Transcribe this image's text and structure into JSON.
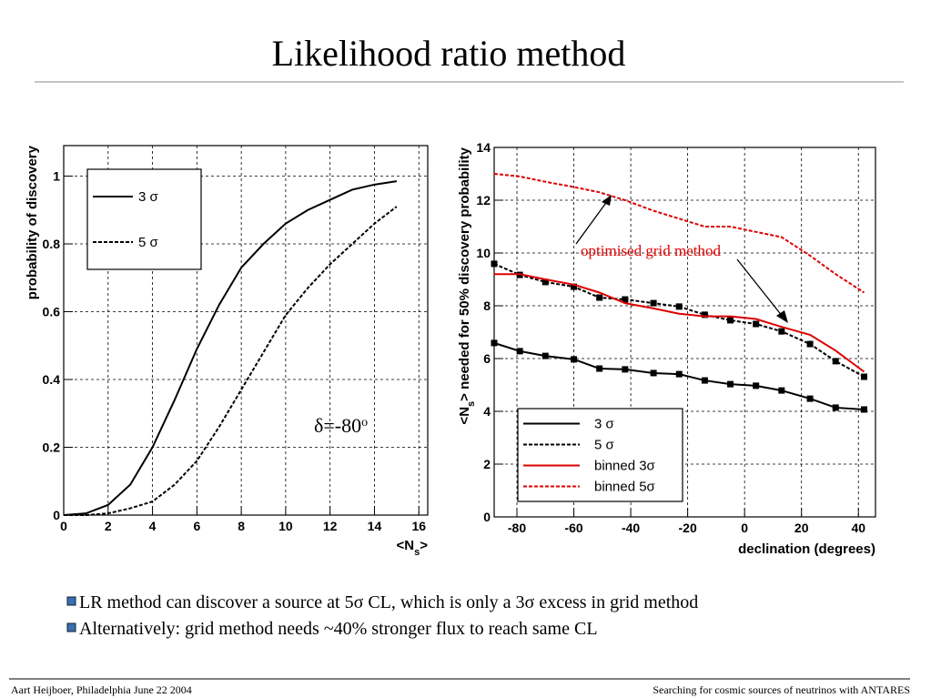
{
  "title": "Likelihood ratio method",
  "chart_data": [
    {
      "type": "line",
      "xlabel_parts": [
        "<N",
        "s",
        ">"
      ],
      "ylabel": "probability of discovery",
      "x": [
        0,
        1,
        2,
        3,
        4,
        5,
        6,
        7,
        8,
        9,
        10,
        11,
        12,
        13,
        14,
        15
      ],
      "series": [
        {
          "name": "3 σ",
          "color": "#000000",
          "style": "solid",
          "values": [
            0,
            0.005,
            0.03,
            0.09,
            0.2,
            0.34,
            0.49,
            0.62,
            0.73,
            0.8,
            0.86,
            0.9,
            0.93,
            0.96,
            0.975,
            0.985
          ]
        },
        {
          "name": "5 σ",
          "color": "#000000",
          "style": "dashed",
          "values": [
            0,
            0,
            0.005,
            0.02,
            0.04,
            0.09,
            0.16,
            0.26,
            0.37,
            0.48,
            0.59,
            0.67,
            0.74,
            0.8,
            0.86,
            0.91
          ]
        }
      ],
      "xlim": [
        0,
        16.4
      ],
      "ylim": [
        0,
        1.09
      ],
      "xticks": [
        0,
        2,
        4,
        6,
        8,
        10,
        12,
        14,
        16
      ],
      "yticks": [
        0,
        0.2,
        0.4,
        0.6,
        0.8,
        1
      ],
      "grid": true,
      "legend": "upper left",
      "annotation_parts": [
        "δ=-80",
        "o"
      ]
    },
    {
      "type": "line",
      "xlabel": "declination (degrees)",
      "ylabel_parts": [
        "<N",
        "s",
        "> needed for 50% discovery probability"
      ],
      "x": [
        -88,
        -79,
        -70,
        -60,
        -51,
        -42,
        -32,
        -23,
        -14,
        -5,
        4,
        13,
        23,
        32,
        42
      ],
      "series": [
        {
          "name": "3 σ",
          "color": "#000000",
          "style": "solid",
          "markers": true,
          "values": [
            6.59,
            6.28,
            6.1,
            5.97,
            5.62,
            5.59,
            5.45,
            5.41,
            5.17,
            5.03,
            4.97,
            4.79,
            4.48,
            4.14,
            4.07
          ]
        },
        {
          "name": "5 σ",
          "color": "#000000",
          "style": "dashed",
          "markers": true,
          "values": [
            9.59,
            9.17,
            8.9,
            8.72,
            8.31,
            8.24,
            8.1,
            7.97,
            7.66,
            7.45,
            7.31,
            7.03,
            6.55,
            5.9,
            5.31
          ]
        },
        {
          "name": "binned 3σ",
          "color": "#dd0000",
          "style": "solid",
          "values": [
            9.2,
            9.2,
            9.0,
            8.8,
            8.5,
            8.1,
            7.9,
            7.7,
            7.6,
            7.6,
            7.5,
            7.2,
            6.9,
            6.3,
            5.5
          ]
        },
        {
          "name": "binned 5σ",
          "color": "#dd0000",
          "style": "dashed",
          "values": [
            13.0,
            12.9,
            12.7,
            12.5,
            12.3,
            12.0,
            11.6,
            11.3,
            11.0,
            11.0,
            10.8,
            10.6,
            9.9,
            9.2,
            8.5
          ]
        }
      ],
      "xlim": [
        -88,
        46
      ],
      "ylim": [
        0,
        14
      ],
      "xticks": [
        -80,
        -60,
        -40,
        -20,
        0,
        20,
        40
      ],
      "yticks": [
        0,
        2,
        4,
        6,
        8,
        10,
        12,
        14
      ],
      "grid": true,
      "legend": "lower left",
      "annotation": "optimised grid method"
    }
  ],
  "bullets": [
    "LR method can discover a source at 5σ CL, which is only a 3σ  excess in grid method",
    "Alternatively: grid method needs ~40% stronger flux to reach same CL"
  ],
  "footer": {
    "left": "Aart Heijboer, Philadelphia June 22 2004",
    "right": "Searching for cosmic sources of neutrinos with ANTARES"
  }
}
